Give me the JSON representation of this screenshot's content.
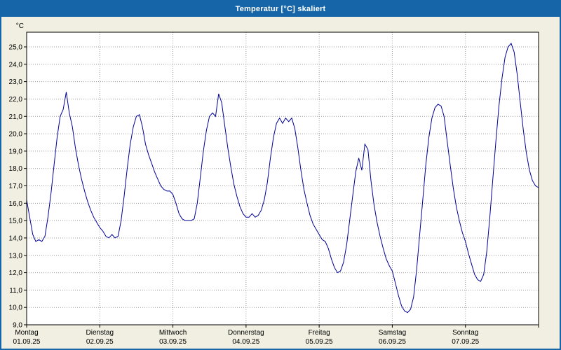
{
  "window": {
    "title": "Temperatur [°C] skaliert"
  },
  "colors": {
    "titlebar": "#1565a8",
    "background": "#f0efe1",
    "plot_background": "#ffffff",
    "plot_border": "#000000",
    "grid": "#9b9b9b",
    "line": "#000099"
  },
  "chart_data": {
    "type": "line",
    "title": "Temperatur [°C] skaliert",
    "ylabel": "°C",
    "ylim": [
      9,
      26
    ],
    "grid": true,
    "legend": "none",
    "y_tick_labels": [
      "9,0",
      "10,0",
      "11,0",
      "12,0",
      "13,0",
      "14,0",
      "15,0",
      "16,0",
      "17,0",
      "18,0",
      "19,0",
      "20,0",
      "21,0",
      "22,0",
      "23,0",
      "24,0",
      "25,0"
    ],
    "x_days": [
      {
        "name": "Montag",
        "date": "01.09.25"
      },
      {
        "name": "Dienstag",
        "date": "02.09.25"
      },
      {
        "name": "Mittwoch",
        "date": "03.09.25"
      },
      {
        "name": "Donnerstag",
        "date": "04.09.25"
      },
      {
        "name": "Freitag",
        "date": "05.09.25"
      },
      {
        "name": "Samstag",
        "date": "06.09.25"
      },
      {
        "name": "Sonntag",
        "date": "07.09.25"
      }
    ],
    "x_unit": "hours from Montag 00:00",
    "x_step_hours": 1,
    "series": [
      {
        "name": "Temperatur",
        "color": "#000099",
        "values": [
          16.2,
          15.2,
          14.2,
          13.8,
          13.9,
          13.8,
          14.1,
          15.2,
          16.6,
          18.2,
          19.8,
          21.0,
          21.4,
          22.4,
          21.2,
          20.4,
          19.2,
          18.2,
          17.4,
          16.7,
          16.1,
          15.6,
          15.2,
          14.9,
          14.6,
          14.4,
          14.1,
          14.0,
          14.2,
          14.0,
          14.1,
          15.0,
          16.4,
          18.0,
          19.4,
          20.4,
          21.0,
          21.1,
          20.4,
          19.4,
          18.8,
          18.3,
          17.8,
          17.4,
          17.0,
          16.8,
          16.7,
          16.7,
          16.5,
          16.0,
          15.4,
          15.1,
          15.0,
          15.0,
          15.0,
          15.1,
          16.0,
          17.5,
          19.0,
          20.2,
          21.0,
          21.2,
          21.0,
          22.3,
          21.8,
          20.5,
          19.2,
          18.1,
          17.1,
          16.4,
          15.8,
          15.4,
          15.2,
          15.2,
          15.4,
          15.2,
          15.3,
          15.6,
          16.2,
          17.2,
          18.6,
          19.8,
          20.6,
          20.9,
          20.6,
          20.9,
          20.7,
          20.9,
          20.3,
          19.2,
          17.9,
          16.8,
          16.0,
          15.3,
          14.8,
          14.5,
          14.2,
          13.9,
          13.8,
          13.4,
          12.8,
          12.3,
          12.0,
          12.1,
          12.6,
          13.6,
          15.0,
          16.4,
          17.8,
          18.6,
          17.9,
          19.4,
          19.1,
          17.3,
          15.9,
          14.9,
          14.1,
          13.4,
          12.8,
          12.4,
          12.1,
          11.4,
          10.7,
          10.1,
          9.8,
          9.7,
          9.9,
          10.6,
          12.2,
          14.2,
          16.2,
          18.2,
          19.8,
          20.9,
          21.5,
          21.7,
          21.6,
          21.0,
          19.6,
          18.2,
          16.9,
          15.8,
          15.0,
          14.3,
          13.8,
          13.1,
          12.5,
          11.9,
          11.6,
          11.5,
          11.9,
          13.2,
          15.2,
          17.4,
          19.6,
          21.6,
          23.2,
          24.4,
          25.0,
          25.2,
          24.7,
          23.4,
          21.8,
          20.2,
          18.9,
          17.9,
          17.3,
          17.0,
          16.9
        ]
      }
    ]
  }
}
